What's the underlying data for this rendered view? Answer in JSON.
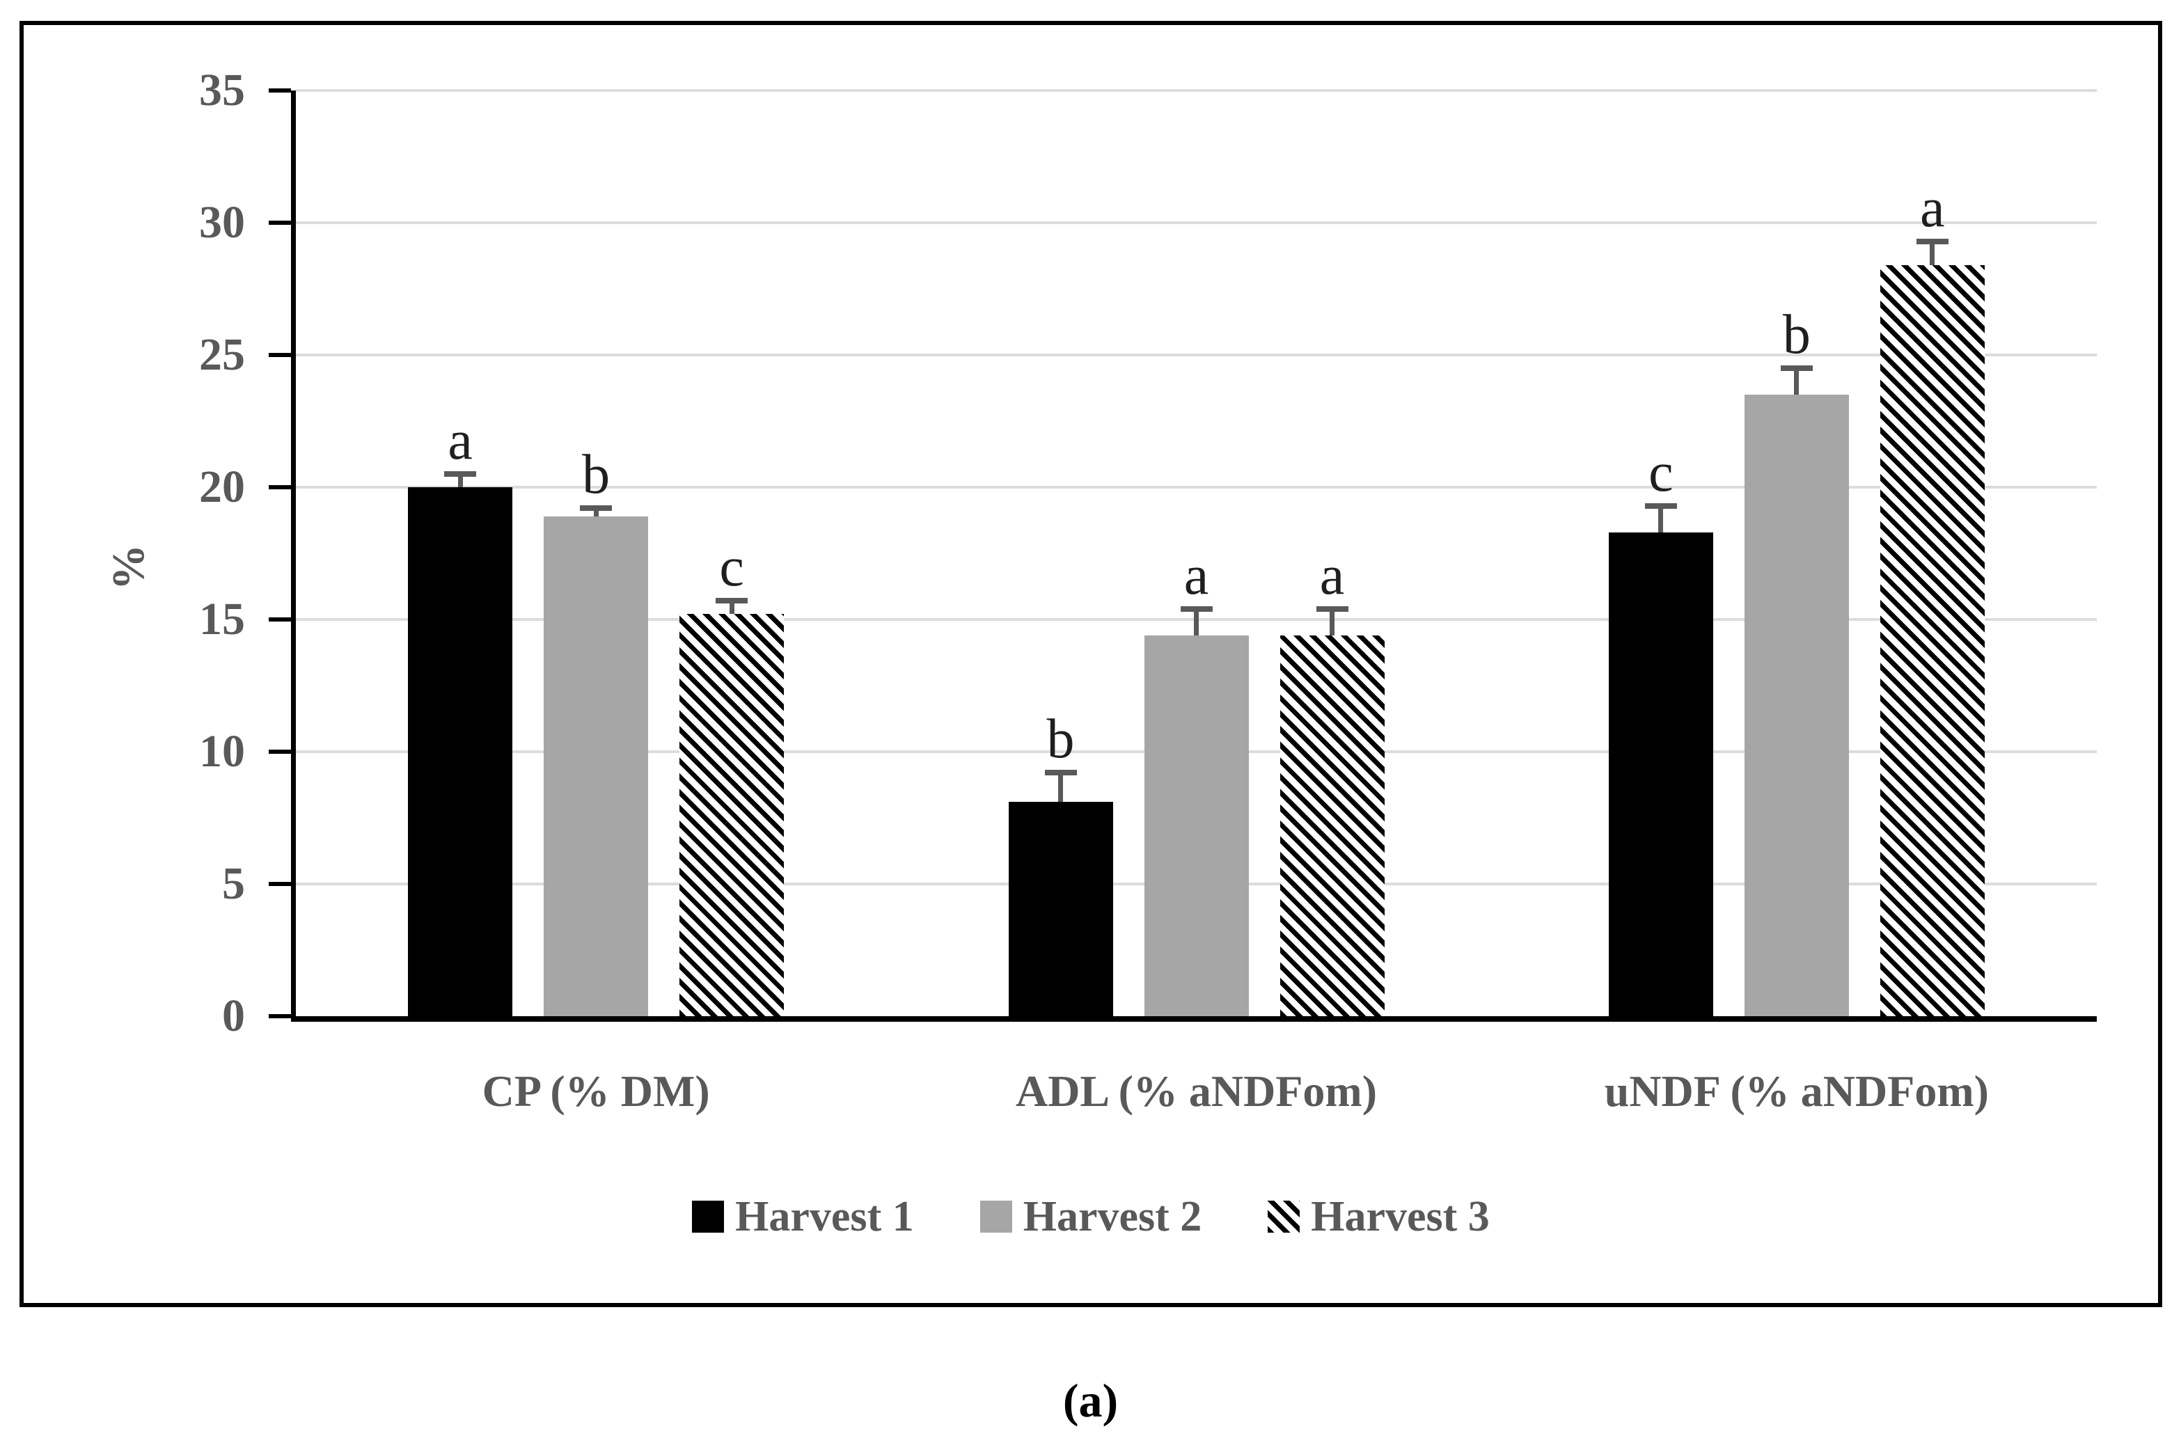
{
  "figure": {
    "caption": "(a)",
    "y_axis_title": "%"
  },
  "chart_data": {
    "type": "bar",
    "title": "",
    "xlabel": "",
    "ylabel": "%",
    "ylim": [
      0,
      35
    ],
    "ytick_step": 5,
    "yticks": [
      "0",
      "5",
      "10",
      "15",
      "20",
      "25",
      "30",
      "35"
    ],
    "grid": "horizontal",
    "legend_position": "bottom",
    "categories": [
      "CP (% DM)",
      "ADL (% aNDFom)",
      "uNDF (% aNDFom)"
    ],
    "series": [
      {
        "name": "Harvest 1",
        "pattern": "solid-black",
        "values": [
          20.0,
          8.1,
          18.3
        ],
        "error_up": [
          0.5,
          1.1,
          1.0
        ],
        "letters": [
          "a",
          "b",
          "c"
        ]
      },
      {
        "name": "Harvest 2",
        "pattern": "solid-gray",
        "values": [
          18.9,
          14.4,
          23.5
        ],
        "error_up": [
          0.3,
          1.0,
          1.0
        ],
        "letters": [
          "b",
          "a",
          "b"
        ]
      },
      {
        "name": "Harvest 3",
        "pattern": "diagonal-hatch",
        "values": [
          15.2,
          14.4,
          28.4
        ],
        "error_up": [
          0.5,
          1.0,
          0.9
        ],
        "letters": [
          "c",
          "a",
          "a"
        ]
      }
    ]
  },
  "colors": {
    "background": "#ffffff",
    "frame_border": "#000000",
    "gridline": "#dcdcdc",
    "axis": "#000000",
    "bar_black": "#000000",
    "bar_gray": "#a6a6a6",
    "hatch_stripe": "#000000",
    "hatch_background": "#ffffff",
    "error_bar": "#595959",
    "tick_label": "#595959",
    "category_label": "#595959",
    "legend_label": "#595959",
    "letter": "#1f1f1f",
    "caption": "#000000"
  }
}
